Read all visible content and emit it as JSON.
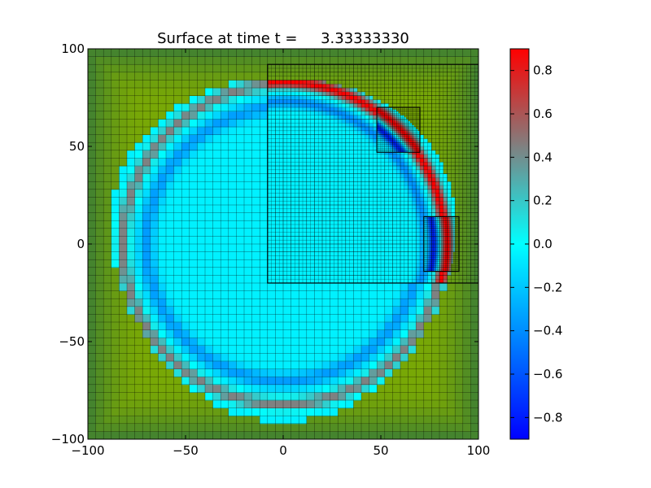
{
  "chart_data": {
    "type": "heatmap",
    "title": "Surface at time t =     3.33333330",
    "xlabel": "",
    "ylabel": "",
    "xlim": [
      -100,
      100
    ],
    "ylim": [
      -100,
      100
    ],
    "xticks": [
      -100,
      -50,
      0,
      50,
      100
    ],
    "yticks": [
      -100,
      -50,
      0,
      50,
      100
    ],
    "x_tick_labels": [
      "−100",
      "−50",
      "0",
      "50",
      "100"
    ],
    "y_tick_labels": [
      "−100",
      "−50",
      "0",
      "50",
      "100"
    ],
    "colorbar": {
      "range": [
        -0.9,
        0.9
      ],
      "ticks": [
        0.8,
        0.6,
        0.4,
        0.2,
        0.0,
        -0.2,
        -0.4,
        -0.6,
        -0.8
      ],
      "tick_labels": [
        "0.8",
        "0.6",
        "0.4",
        "0.2",
        "0.0",
        "−0.2",
        "−0.4",
        "−0.6",
        "−0.8"
      ],
      "colors": [
        "#0000ff",
        "#00ffff",
        "#ff0000"
      ]
    },
    "land_colors": [
      "#78a806",
      "#3e7f34"
    ],
    "wave": {
      "center": [
        0,
        0
      ],
      "outer_ring_radius": 82,
      "inner_trough_radius": 70,
      "outer_ring_value": 0.5,
      "inner_trough_value": -0.3,
      "interior_value": -0.05
    },
    "grid_levels": [
      {
        "x": [
          -100,
          100
        ],
        "y": [
          -100,
          100
        ],
        "cell": 4
      },
      {
        "x": [
          -8,
          100
        ],
        "y": [
          -20,
          92
        ],
        "cell": 2
      },
      {
        "x": [
          48,
          70
        ],
        "y": [
          47,
          70
        ],
        "cell": 1
      },
      {
        "x": [
          72,
          90
        ],
        "y": [
          -14,
          14
        ],
        "cell": 1
      }
    ]
  }
}
